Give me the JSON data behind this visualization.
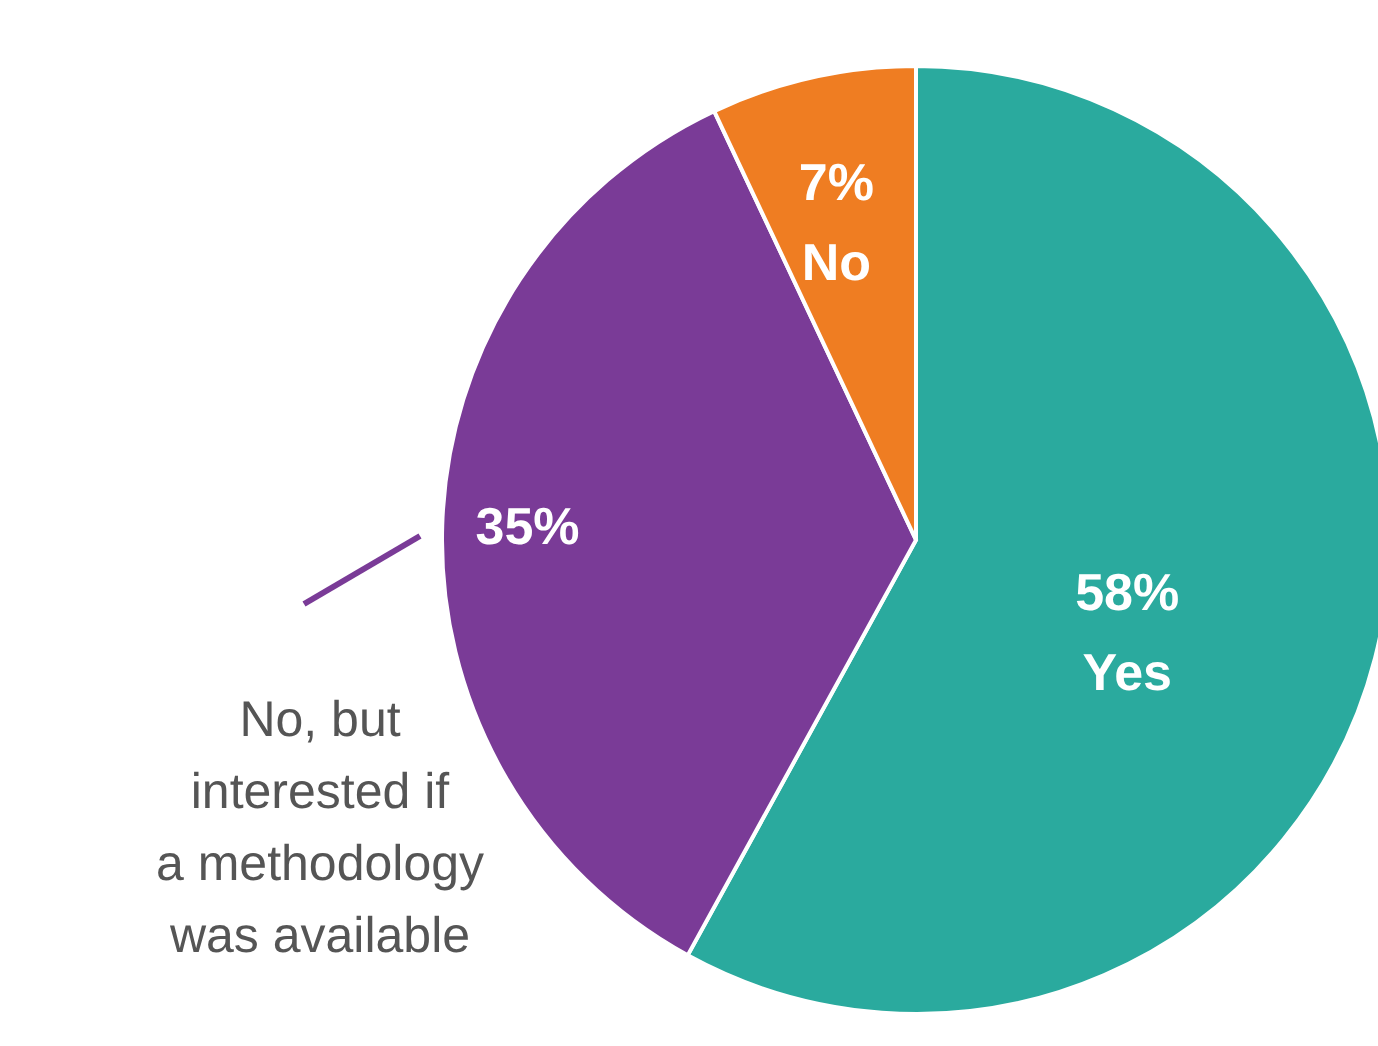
{
  "chart_data": {
    "type": "pie",
    "categories": [
      "Yes",
      "No, but interested if a methodology was available",
      "No"
    ],
    "values": [
      58,
      35,
      7
    ],
    "value_labels": [
      "58%",
      "35%",
      "7%"
    ],
    "colors": [
      "#2aaa9e",
      "#7a3b97",
      "#ef7d22"
    ]
  }
}
